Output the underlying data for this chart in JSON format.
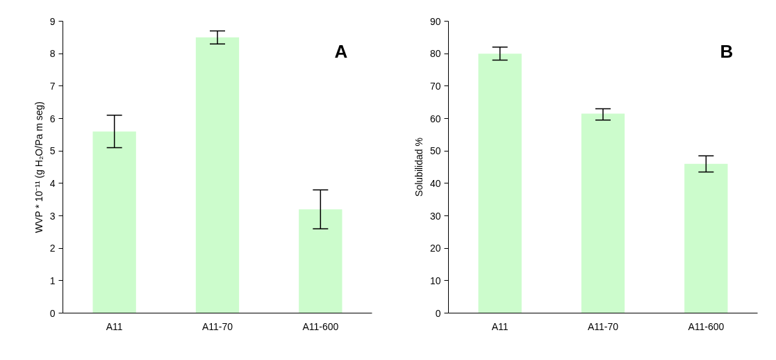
{
  "chart_data": [
    {
      "type": "bar",
      "categories": [
        "A11",
        "A11-70",
        "A11-600"
      ],
      "values": [
        5.6,
        8.5,
        3.2
      ],
      "errors": [
        [
          5.1,
          6.1
        ],
        [
          8.3,
          8.7
        ],
        [
          2.6,
          3.8
        ]
      ],
      "color": "#ccfccc",
      "ylabel": "WVP * 10⁻¹¹ (g H₂O/Pa m seg)",
      "ylim": [
        0,
        9
      ],
      "yticks": [
        0,
        1,
        2,
        3,
        4,
        5,
        6,
        7,
        8,
        9
      ],
      "annotations": [
        "A"
      ],
      "grid": false
    },
    {
      "type": "bar",
      "categories": [
        "A11",
        "A11-70",
        "A11-600"
      ],
      "values": [
        80,
        61.5,
        46
      ],
      "errors": [
        [
          78,
          82
        ],
        [
          59.5,
          63
        ],
        [
          43.5,
          48.5
        ]
      ],
      "color": "#ccfccc",
      "ylabel": "Solubilidad %",
      "ylim": [
        0,
        90
      ],
      "yticks": [
        0,
        10,
        20,
        30,
        40,
        50,
        60,
        70,
        80,
        90
      ],
      "annotations": [
        "B"
      ],
      "grid": false
    }
  ]
}
